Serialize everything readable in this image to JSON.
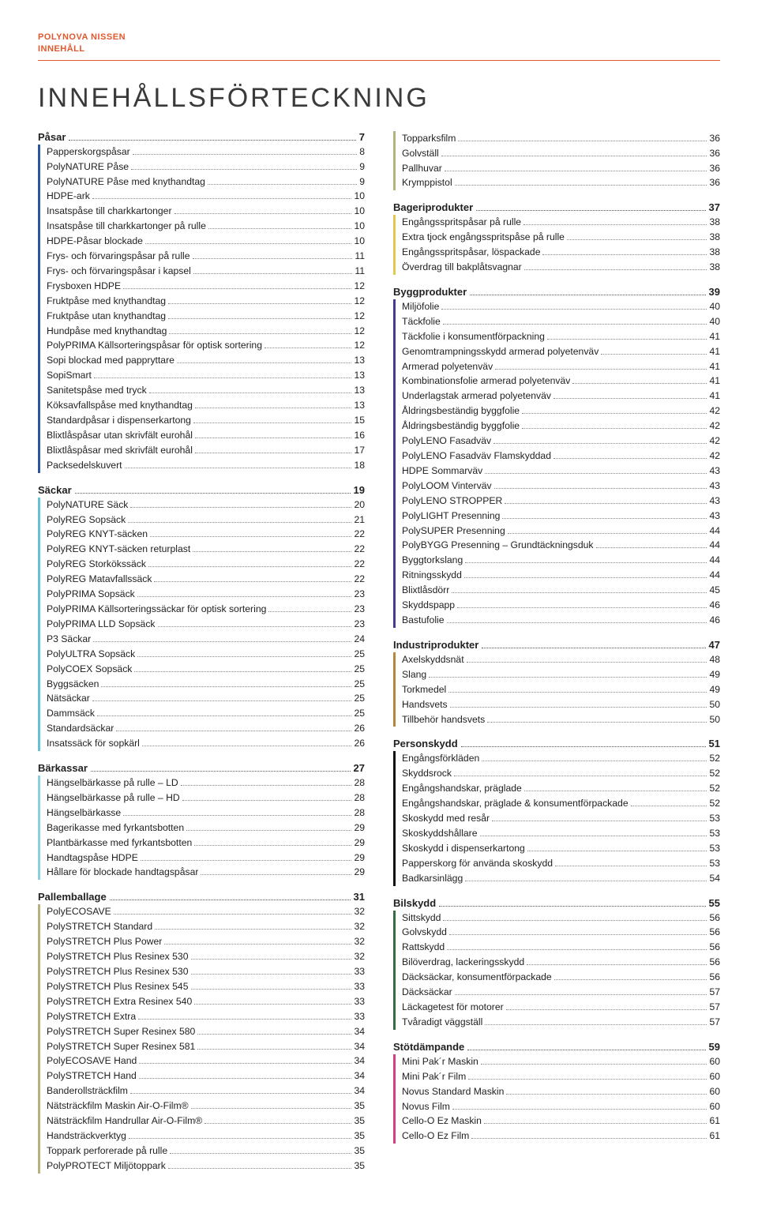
{
  "brand": {
    "line1": "POLYNOVA NISSEN",
    "line2": "INNEHÅLL"
  },
  "title": "INNEHÅLLSFÖRTECKNING",
  "colors": {
    "accent": "#e2582e",
    "text": "#222222"
  },
  "columns": [
    [
      {
        "heading": {
          "label": "Påsar",
          "page": "7"
        },
        "bar_color": "#2b55a2",
        "items": [
          {
            "label": "Papperskorgspåsar",
            "page": "8"
          },
          {
            "label": "PolyNATURE Påse",
            "page": "9"
          },
          {
            "label": "PolyNATURE Påse med knythandtag",
            "page": "9"
          },
          {
            "label": "HDPE-ark",
            "page": "10"
          },
          {
            "label": "Insatspåse till charkkartonger",
            "page": "10"
          },
          {
            "label": "Insatspåse till charkkartonger på rulle",
            "page": "10"
          },
          {
            "label": "HDPE-Påsar blockade",
            "page": "10"
          },
          {
            "label": "Frys- och förvaringspåsar på rulle",
            "page": "11"
          },
          {
            "label": "Frys- och förvaringspåsar i kapsel",
            "page": "11"
          },
          {
            "label": "Frysboxen HDPE",
            "page": "12"
          },
          {
            "label": "Fruktpåse med knythandtag",
            "page": "12"
          },
          {
            "label": "Fruktpåse utan knythandtag",
            "page": "12"
          },
          {
            "label": "Hundpåse med knythandtag",
            "page": "12"
          },
          {
            "label": "PolyPRIMA Källsorteringspåsar för optisk sortering",
            "page": "12"
          },
          {
            "label": "Sopi blockad med pappryttare",
            "page": "13"
          },
          {
            "label": "SopiSmart",
            "page": "13"
          },
          {
            "label": "Sanitetspåse med tryck",
            "page": "13"
          },
          {
            "label": "Köksavfallspåse med knythandtag",
            "page": "13"
          },
          {
            "label": "Standardpåsar i dispenserkartong",
            "page": "15"
          },
          {
            "label": "Blixtlåspåsar utan skrivfält eurohål",
            "page": "16"
          },
          {
            "label": "Blixtlåspåsar med skrivfält eurohål",
            "page": "17"
          },
          {
            "label": "Packsedelskuvert",
            "page": "18"
          }
        ]
      },
      {
        "heading": {
          "label": "Säckar",
          "page": "19"
        },
        "bar_color": "#64c2d4",
        "items": [
          {
            "label": "PolyNATURE Säck",
            "page": "20"
          },
          {
            "label": "PolyREG Sopsäck",
            "page": "21"
          },
          {
            "label": "PolyREG KNYT-säcken",
            "page": "22"
          },
          {
            "label": "PolyREG KNYT-säcken returplast",
            "page": "22"
          },
          {
            "label": "PolyREG Storkökssäck",
            "page": "22"
          },
          {
            "label": "PolyREG Matavfallssäck",
            "page": "22"
          },
          {
            "label": "PolyPRIMA Sopsäck",
            "page": "23"
          },
          {
            "label": "PolyPRIMA Källsorteringssäckar för optisk sortering",
            "page": "23"
          },
          {
            "label": "PolyPRIMA LLD Sopsäck",
            "page": "23"
          },
          {
            "label": "P3 Säckar",
            "page": "24"
          },
          {
            "label": "PolyULTRA Sopsäck",
            "page": "25"
          },
          {
            "label": "PolyCOEX Sopsäck",
            "page": "25"
          },
          {
            "label": "Byggsäcken",
            "page": "25"
          },
          {
            "label": "Nätsäckar",
            "page": "25"
          },
          {
            "label": "Dammsäck",
            "page": "25"
          },
          {
            "label": "Standardsäckar",
            "page": "26"
          },
          {
            "label": "Insatssäck för sopkärl",
            "page": "26"
          }
        ]
      },
      {
        "heading": {
          "label": "Bärkassar",
          "page": "27"
        },
        "bar_color": "#8bd0dc",
        "items": [
          {
            "label": "Hängselbärkasse på rulle – LD",
            "page": "28"
          },
          {
            "label": "Hängselbärkasse på rulle – HD",
            "page": "28"
          },
          {
            "label": "Hängselbärkasse",
            "page": "28"
          },
          {
            "label": "Bagerikasse med fyrkantsbotten",
            "page": "29"
          },
          {
            "label": "Plantbärkasse med fyrkantsbotten",
            "page": "29"
          },
          {
            "label": "Handtagspåse HDPE",
            "page": "29"
          },
          {
            "label": "Hållare för blockade handtagspåsar",
            "page": "29"
          }
        ]
      },
      {
        "heading": {
          "label": "Pallemballage",
          "page": "31"
        },
        "bar_color": "#b5b27e",
        "items": [
          {
            "label": "PolyECOSAVE",
            "page": "32"
          },
          {
            "label": "PolySTRETCH Standard",
            "page": "32"
          },
          {
            "label": "PolySTRETCH Plus Power",
            "page": "32"
          },
          {
            "label": "PolySTRETCH Plus Resinex 530",
            "page": "32"
          },
          {
            "label": "PolySTRETCH Plus Resinex 530",
            "page": "33"
          },
          {
            "label": "PolySTRETCH Plus Resinex 545",
            "page": "33"
          },
          {
            "label": "PolySTRETCH Extra Resinex 540",
            "page": "33"
          },
          {
            "label": "PolySTRETCH Extra",
            "page": "33"
          },
          {
            "label": "PolySTRETCH Super Resinex 580",
            "page": "34"
          },
          {
            "label": "PolySTRETCH Super Resinex 581",
            "page": "34"
          },
          {
            "label": "PolyECOSAVE Hand",
            "page": "34"
          },
          {
            "label": "PolySTRETCH Hand",
            "page": "34"
          },
          {
            "label": "Banderollsträckfilm",
            "page": "34"
          },
          {
            "label": "Nätsträckfilm Maskin Air-O-Film®",
            "page": "35"
          },
          {
            "label": "Nätsträckfilm Handrullar Air-O-Film®",
            "page": "35"
          },
          {
            "label": "Handsträckverktyg",
            "page": "35"
          },
          {
            "label": "Toppark perforerade på rulle",
            "page": "35"
          },
          {
            "label": "PolyPROTECT Miljötoppark",
            "page": "35"
          }
        ]
      }
    ],
    [
      {
        "heading": null,
        "bar_color": "#b5b27e",
        "items": [
          {
            "label": "Topparksfilm",
            "page": "36"
          },
          {
            "label": "Golvställ",
            "page": "36"
          },
          {
            "label": "Pallhuvar",
            "page": "36"
          },
          {
            "label": "Krymppistol",
            "page": "36"
          }
        ]
      },
      {
        "heading": {
          "label": "Bageriprodukter",
          "page": "37"
        },
        "bar_color": "#dfc94f",
        "items": [
          {
            "label": "Engångsspritspåsar på rulle",
            "page": "38"
          },
          {
            "label": "Extra tjock engångsspritspåse på rulle",
            "page": "38"
          },
          {
            "label": "Engångsspritspåsar, löspackade",
            "page": "38"
          },
          {
            "label": "Överdrag till bakplåtsvagnar",
            "page": "38"
          }
        ]
      },
      {
        "heading": {
          "label": "Byggprodukter",
          "page": "39"
        },
        "bar_color": "#4a3a8f",
        "items": [
          {
            "label": "Miljöfolie",
            "page": "40"
          },
          {
            "label": "Täckfolie",
            "page": "40"
          },
          {
            "label": "Täckfolie i konsumentförpackning",
            "page": "41"
          },
          {
            "label": "Genomtrampningsskydd armerad polyetenväv",
            "page": "41"
          },
          {
            "label": "Armerad polyetenväv",
            "page": "41"
          },
          {
            "label": "Kombinationsfolie armerad polyetenväv",
            "page": "41"
          },
          {
            "label": "Underlagstak armerad polyetenväv",
            "page": "41"
          },
          {
            "label": "Åldringsbeständig byggfolie",
            "page": "42"
          },
          {
            "label": "Åldringsbeständig byggfolie",
            "page": "42"
          },
          {
            "label": "PolyLENO Fasadväv",
            "page": "42"
          },
          {
            "label": "PolyLENO Fasadväv Flamskyddad",
            "page": "42"
          },
          {
            "label": "HDPE Sommarväv",
            "page": "43"
          },
          {
            "label": "PolyLOOM Vinterväv",
            "page": "43"
          },
          {
            "label": "PolyLENO STROPPER",
            "page": "43"
          },
          {
            "label": "PolyLIGHT Presenning",
            "page": "43"
          },
          {
            "label": "PolySUPER Presenning",
            "page": "44"
          },
          {
            "label": "PolyBYGG Presenning – Grundtäckningsduk",
            "page": "44"
          },
          {
            "label": "Byggtorkslang",
            "page": "44"
          },
          {
            "label": "Ritningsskydd",
            "page": "44"
          },
          {
            "label": "Blixtlåsdörr",
            "page": "45"
          },
          {
            "label": "Skyddspapp",
            "page": "46"
          },
          {
            "label": "Bastufolie",
            "page": "46"
          }
        ]
      },
      {
        "heading": {
          "label": "Industriprodukter",
          "page": "47"
        },
        "bar_color": "#b08a36",
        "items": [
          {
            "label": "Axelskyddsnät",
            "page": "48"
          },
          {
            "label": "Slang",
            "page": "49"
          },
          {
            "label": "Torkmedel",
            "page": "49"
          },
          {
            "label": "Handsvets",
            "page": "50"
          },
          {
            "label": "Tillbehör handsvets",
            "page": "50"
          }
        ]
      },
      {
        "heading": {
          "label": "Personskydd",
          "page": "51"
        },
        "bar_color": "#111111",
        "items": [
          {
            "label": "Engångsförkläden",
            "page": "52"
          },
          {
            "label": "Skyddsrock",
            "page": "52"
          },
          {
            "label": "Engångshandskar, präglade",
            "page": "52"
          },
          {
            "label": "Engångshandskar, präglade & konsumentförpackade",
            "page": "52"
          },
          {
            "label": "Skoskydd med resår",
            "page": "53"
          },
          {
            "label": "Skoskyddshållare",
            "page": "53"
          },
          {
            "label": "Skoskydd i dispenserkartong",
            "page": "53"
          },
          {
            "label": "Papperskorg för använda skoskydd",
            "page": "53"
          },
          {
            "label": "Badkarsinlägg",
            "page": "54"
          }
        ]
      },
      {
        "heading": {
          "label": "Bilskydd",
          "page": "55"
        },
        "bar_color": "#3a6a3f",
        "items": [
          {
            "label": "Sittskydd",
            "page": "56"
          },
          {
            "label": "Golvskydd",
            "page": "56"
          },
          {
            "label": "Rattskydd",
            "page": "56"
          },
          {
            "label": "Bilöverdrag, lackeringsskydd",
            "page": "56"
          },
          {
            "label": "Däcksäckar, konsumentförpackade",
            "page": "56"
          },
          {
            "label": "Däcksäckar",
            "page": "57"
          },
          {
            "label": "Läckagetest för motorer",
            "page": "57"
          },
          {
            "label": "Tvåradigt väggställ",
            "page": "57"
          }
        ]
      },
      {
        "heading": {
          "label": "Stötdämpande",
          "page": "59"
        },
        "bar_color": "#d63c8a",
        "items": [
          {
            "label": "Mini Pak´r Maskin",
            "page": "60"
          },
          {
            "label": "Mini Pak´r Film",
            "page": "60"
          },
          {
            "label": "Novus Standard Maskin",
            "page": "60"
          },
          {
            "label": "Novus Film",
            "page": "60"
          },
          {
            "label": "Cello-O Ez Maskin",
            "page": "61"
          },
          {
            "label": "Cello-O Ez Film",
            "page": "61"
          }
        ]
      }
    ]
  ]
}
